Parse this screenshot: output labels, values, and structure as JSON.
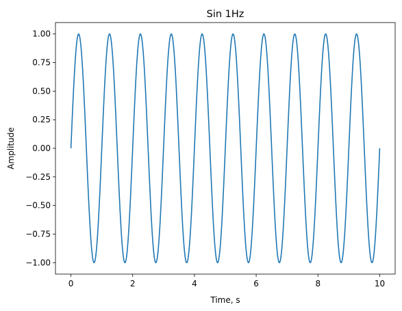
{
  "chart_data": {
    "type": "line",
    "title": "Sin 1Hz",
    "xlabel": "Time, s",
    "ylabel": "Amplitude",
    "xlim": [
      -0.5,
      10.5
    ],
    "ylim": [
      -1.1,
      1.1
    ],
    "x_ticks": [
      0,
      2,
      4,
      6,
      8,
      10
    ],
    "x_tick_labels": [
      "0",
      "2",
      "4",
      "6",
      "8",
      "10"
    ],
    "y_ticks": [
      -1.0,
      -0.75,
      -0.5,
      -0.25,
      0.0,
      0.25,
      0.5,
      0.75,
      1.0
    ],
    "y_tick_labels": [
      "−1.00",
      "−0.75",
      "−0.50",
      "−0.25",
      "0.00",
      "0.25",
      "0.50",
      "0.75",
      "1.00"
    ],
    "grid": false,
    "series": [
      {
        "function": "sin",
        "frequency_hz": 1,
        "amplitude": 1,
        "x_range": [
          0,
          10
        ],
        "color": "#1f77b4"
      }
    ]
  }
}
